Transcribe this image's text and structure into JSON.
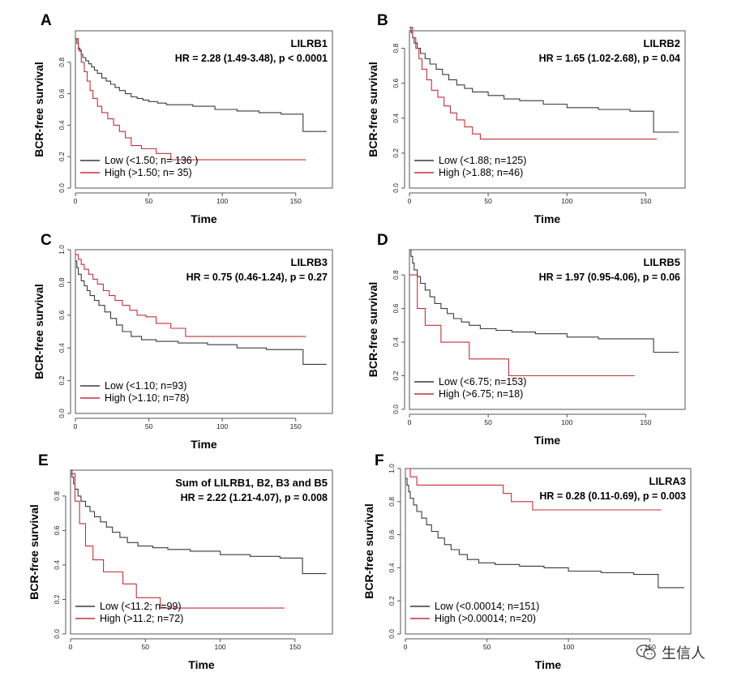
{
  "colors": {
    "low": "#3a3a3a",
    "high": "#c4313b"
  },
  "axis_titles": {
    "x": "Time",
    "y": "BCR-free survival"
  },
  "watermark": {
    "text": "生信人",
    "icon": "wechat-icon"
  },
  "chart_data": [
    {
      "type": "line",
      "letter": "A",
      "title": "LILRB1",
      "stat": "HR = 2.28 (1.49-3.48), p < 0.0001",
      "xlabel": "Time",
      "ylabel": "BCR-free survival",
      "xlim": [
        0,
        175
      ],
      "ylim": [
        0,
        1.0
      ],
      "xticks": [
        0,
        50,
        100,
        150
      ],
      "yticks": [
        0.0,
        0.2,
        0.4,
        0.6,
        0.8
      ],
      "legend": [
        "Low (<1.50; n= 136 )",
        "High (>1.50; n= 35)"
      ],
      "series": [
        {
          "name": "Low (<1.50; n= 136 )",
          "group": "low",
          "x": [
            0,
            1,
            2,
            3,
            4,
            5,
            7,
            9,
            11,
            13,
            15,
            18,
            21,
            24,
            27,
            30,
            34,
            38,
            42,
            46,
            50,
            56,
            62,
            70,
            80,
            95,
            110,
            125,
            140,
            155,
            171
          ],
          "y": [
            0.95,
            0.92,
            0.89,
            0.87,
            0.85,
            0.83,
            0.81,
            0.79,
            0.77,
            0.75,
            0.73,
            0.7,
            0.68,
            0.66,
            0.64,
            0.62,
            0.6,
            0.58,
            0.57,
            0.56,
            0.55,
            0.54,
            0.53,
            0.53,
            0.52,
            0.5,
            0.49,
            0.48,
            0.47,
            0.36,
            0.36
          ]
        },
        {
          "name": "High (>1.50; n= 35)",
          "group": "high",
          "x": [
            0,
            2,
            4,
            6,
            8,
            10,
            12,
            15,
            18,
            22,
            26,
            30,
            34,
            38,
            45,
            55,
            65,
            157
          ],
          "y": [
            0.95,
            0.88,
            0.8,
            0.74,
            0.68,
            0.62,
            0.57,
            0.52,
            0.48,
            0.44,
            0.4,
            0.36,
            0.32,
            0.27,
            0.25,
            0.22,
            0.18,
            0.18
          ]
        }
      ]
    },
    {
      "type": "line",
      "letter": "B",
      "title": "LILRB2",
      "stat": "HR = 1.65 (1.02-2.68), p = 0.04",
      "xlabel": "Time",
      "ylabel": "BCR-free survival",
      "xlim": [
        0,
        175
      ],
      "ylim": [
        0,
        0.9
      ],
      "xticks": [
        0,
        50,
        100,
        150
      ],
      "yticks": [
        0.0,
        0.2,
        0.4,
        0.6,
        0.8
      ],
      "legend": [
        "Low (<1.88; n=125)",
        "High (>1.88; n=46)"
      ],
      "series": [
        {
          "name": "Low (<1.88; n=125)",
          "group": "low",
          "x": [
            0,
            1,
            2,
            3,
            5,
            7,
            10,
            13,
            17,
            21,
            25,
            30,
            35,
            40,
            50,
            60,
            70,
            85,
            100,
            120,
            140,
            155,
            171
          ],
          "y": [
            0.92,
            0.89,
            0.86,
            0.83,
            0.8,
            0.77,
            0.74,
            0.71,
            0.68,
            0.65,
            0.62,
            0.59,
            0.57,
            0.55,
            0.53,
            0.51,
            0.5,
            0.48,
            0.46,
            0.45,
            0.44,
            0.32,
            0.32
          ]
        },
        {
          "name": "High (>1.88; n=46)",
          "group": "high",
          "x": [
            0,
            2,
            4,
            6,
            8,
            11,
            14,
            18,
            22,
            26,
            30,
            35,
            40,
            45,
            157
          ],
          "y": [
            0.92,
            0.86,
            0.8,
            0.74,
            0.68,
            0.62,
            0.56,
            0.52,
            0.47,
            0.43,
            0.39,
            0.35,
            0.31,
            0.28,
            0.28
          ]
        }
      ]
    },
    {
      "type": "line",
      "letter": "C",
      "title": "LILRB3",
      "stat": "HR = 0.75 (0.46-1.24), p = 0.27",
      "xlabel": "Time",
      "ylabel": "BCR-free survival",
      "xlim": [
        0,
        175
      ],
      "ylim": [
        0,
        1.0
      ],
      "xticks": [
        0,
        50,
        100,
        150
      ],
      "yticks": [
        0.0,
        0.2,
        0.4,
        0.6,
        0.8,
        1.0
      ],
      "legend": [
        "Low (<1.10; n=93)",
        "High (>1.10; n=78)"
      ],
      "series": [
        {
          "name": "Low (<1.10; n=93)",
          "group": "low",
          "x": [
            0,
            1,
            2,
            4,
            6,
            8,
            10,
            13,
            16,
            20,
            24,
            28,
            32,
            38,
            45,
            55,
            70,
            90,
            110,
            130,
            155,
            171
          ],
          "y": [
            0.93,
            0.89,
            0.85,
            0.81,
            0.78,
            0.75,
            0.72,
            0.69,
            0.66,
            0.62,
            0.58,
            0.54,
            0.5,
            0.47,
            0.45,
            0.44,
            0.43,
            0.42,
            0.4,
            0.39,
            0.3,
            0.3
          ]
        },
        {
          "name": "High (>1.10; n=78)",
          "group": "high",
          "x": [
            0,
            2,
            4,
            6,
            9,
            12,
            15,
            19,
            23,
            27,
            32,
            37,
            42,
            48,
            55,
            65,
            75,
            90,
            157
          ],
          "y": [
            0.97,
            0.94,
            0.91,
            0.88,
            0.85,
            0.82,
            0.79,
            0.75,
            0.72,
            0.69,
            0.66,
            0.63,
            0.6,
            0.59,
            0.55,
            0.52,
            0.47,
            0.47,
            0.47
          ]
        }
      ]
    },
    {
      "type": "line",
      "letter": "D",
      "title": "LILRB5",
      "stat": "HR = 1.97 (0.95-4.06), p = 0.06",
      "xlabel": "Time",
      "ylabel": "BCR-free survival",
      "xlim": [
        0,
        175
      ],
      "ylim": [
        0,
        0.95
      ],
      "xticks": [
        0,
        50,
        100,
        150
      ],
      "yticks": [
        0.0,
        0.2,
        0.4,
        0.6,
        0.8
      ],
      "legend": [
        "Low (<6.75; n=153)",
        "High (>6.75; n=18)"
      ],
      "series": [
        {
          "name": "Low (<6.75; n=153)",
          "group": "low",
          "x": [
            0,
            1,
            2,
            3,
            5,
            7,
            10,
            13,
            16,
            20,
            24,
            28,
            33,
            38,
            45,
            55,
            65,
            80,
            100,
            120,
            140,
            155,
            171
          ],
          "y": [
            0.95,
            0.91,
            0.87,
            0.83,
            0.79,
            0.75,
            0.71,
            0.67,
            0.63,
            0.6,
            0.57,
            0.54,
            0.52,
            0.5,
            0.48,
            0.47,
            0.46,
            0.45,
            0.43,
            0.42,
            0.42,
            0.34,
            0.34
          ]
        },
        {
          "name": "High (>6.75; n=18)",
          "group": "high",
          "x": [
            0,
            5,
            10,
            20,
            38,
            63,
            143
          ],
          "y": [
            0.8,
            0.6,
            0.5,
            0.4,
            0.3,
            0.2,
            0.2
          ]
        }
      ]
    },
    {
      "type": "line",
      "letter": "E",
      "title": "Sum of LILRB1, B2, B3 and B5",
      "stat": "HR = 2.22 (1.21-4.07), p = 0.008",
      "xlabel": "Time",
      "ylabel": "BCR-free survival",
      "xlim": [
        0,
        175
      ],
      "ylim": [
        0,
        0.95
      ],
      "xticks": [
        0,
        50,
        100,
        150
      ],
      "yticks": [
        0.0,
        0.2,
        0.4,
        0.6,
        0.8
      ],
      "legend": [
        "Low (<11.2; n=99)",
        "High (>11.2; n=72)"
      ],
      "series": [
        {
          "name": "Low (<11.2; n=99)",
          "group": "low",
          "x": [
            0,
            1,
            2,
            3,
            5,
            7,
            10,
            13,
            16,
            20,
            24,
            28,
            33,
            38,
            45,
            55,
            65,
            80,
            100,
            120,
            140,
            155,
            171
          ],
          "y": [
            0.95,
            0.91,
            0.87,
            0.84,
            0.8,
            0.77,
            0.74,
            0.71,
            0.68,
            0.65,
            0.62,
            0.59,
            0.56,
            0.53,
            0.51,
            0.5,
            0.49,
            0.48,
            0.46,
            0.45,
            0.44,
            0.35,
            0.35
          ]
        },
        {
          "name": "High (>11.2; n=72)",
          "group": "high",
          "x": [
            0,
            3,
            6,
            10,
            15,
            22,
            35,
            44,
            60,
            143
          ],
          "y": [
            0.93,
            0.77,
            0.64,
            0.51,
            0.43,
            0.36,
            0.29,
            0.21,
            0.15,
            0.15
          ]
        }
      ]
    },
    {
      "type": "line",
      "letter": "F",
      "title": "LILRA3",
      "stat": "HR = 0.28 (0.11-0.69), p = 0.003",
      "xlabel": "Time",
      "ylabel": "BCR-free survival",
      "xlim": [
        0,
        175
      ],
      "ylim": [
        0,
        1.0
      ],
      "xticks": [
        0,
        50,
        100,
        150
      ],
      "yticks": [
        0.0,
        0.2,
        0.4,
        0.6,
        0.8,
        1.0
      ],
      "legend": [
        "Low (<0.00014; n=151)",
        "High (>0.00014; n=20)"
      ],
      "series": [
        {
          "name": "Low (<0.00014; n=151)",
          "group": "low",
          "x": [
            0,
            1,
            2,
            3,
            5,
            7,
            10,
            13,
            16,
            20,
            24,
            28,
            33,
            38,
            45,
            55,
            70,
            85,
            100,
            120,
            140,
            155,
            171
          ],
          "y": [
            0.94,
            0.9,
            0.86,
            0.82,
            0.78,
            0.74,
            0.7,
            0.66,
            0.62,
            0.58,
            0.54,
            0.51,
            0.48,
            0.45,
            0.43,
            0.42,
            0.41,
            0.4,
            0.38,
            0.37,
            0.36,
            0.28,
            0.28
          ]
        },
        {
          "name": "High (>0.00014; n=20)",
          "group": "high",
          "x": [
            0,
            3,
            7,
            60,
            65,
            78,
            157
          ],
          "y": [
            1.0,
            0.95,
            0.9,
            0.85,
            0.8,
            0.75,
            0.75
          ]
        }
      ]
    }
  ]
}
